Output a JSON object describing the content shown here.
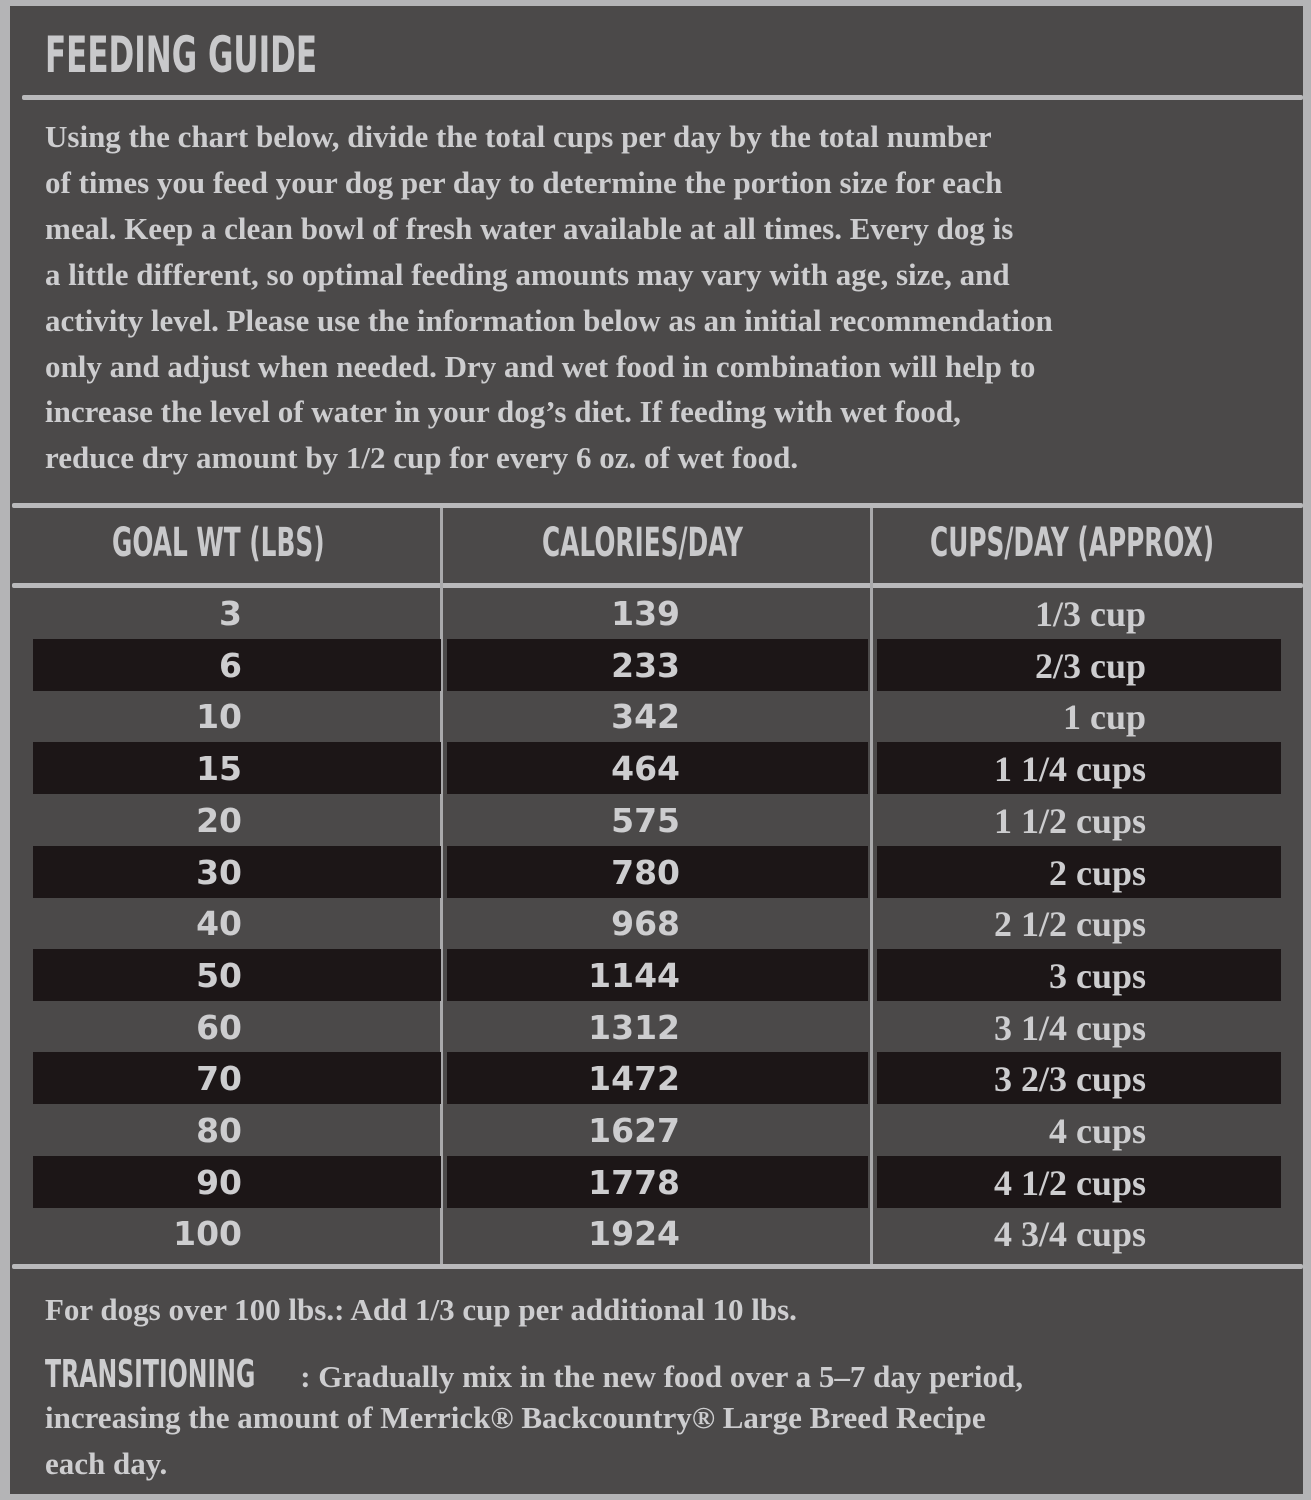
{
  "title": "FEEDING GUIDE",
  "intro_lines": [
    "Using the chart below, divide the total cups per day by the total number",
    "of times you feed your dog per day to determine the portion size for each",
    "meal. Keep a clean bowl of fresh water available at all times. Every dog is",
    "a little different, so optimal feeding amounts may vary with age, size, and",
    "activity level. Please use the information below as an initial recommendation",
    "only and adjust when needed. Dry and wet food in combination will help to",
    "increase the level of water in your dog’s diet. If feeding with wet food,",
    "reduce dry amount by 1/2 cup for every 6 oz. of wet food."
  ],
  "table": {
    "headers": [
      "GOAL WT (LBS)",
      "CALORIES/DAY",
      "CUPS/DAY (APPROX)"
    ],
    "rows": [
      [
        "3",
        "139",
        "1/3 cup"
      ],
      [
        "6",
        "233",
        "2/3 cup"
      ],
      [
        "10",
        "342",
        "1 cup"
      ],
      [
        "15",
        "464",
        "1 1/4 cups"
      ],
      [
        "20",
        "575",
        "1 1/2 cups"
      ],
      [
        "30",
        "780",
        "2 cups"
      ],
      [
        "40",
        "968",
        "2 1/2 cups"
      ],
      [
        "50",
        "1144",
        "3 cups"
      ],
      [
        "60",
        "1312",
        "3 1/4 cups"
      ],
      [
        "70",
        "1472",
        "3 2/3 cups"
      ],
      [
        "80",
        "1627",
        "4 cups"
      ],
      [
        "90",
        "1778",
        "4 1/2 cups"
      ],
      [
        "100",
        "1924",
        "4 3/4 cups"
      ]
    ]
  },
  "footer": {
    "over_100": "For dogs over 100 lbs.: Add 1/3 cup per additional 10 lbs.",
    "transition_label": "TRANSITIONING",
    "transition_lines": [
      ": Gradually mix in the new food over a 5–7 day period,",
      "increasing the amount of Merrick® Backcountry® Large Breed Recipe",
      "each day."
    ]
  },
  "colors": {
    "background": "#4b4949",
    "text": "#cdcdcf",
    "dark_row": "#1c1617",
    "border": "#b4b4b6"
  }
}
